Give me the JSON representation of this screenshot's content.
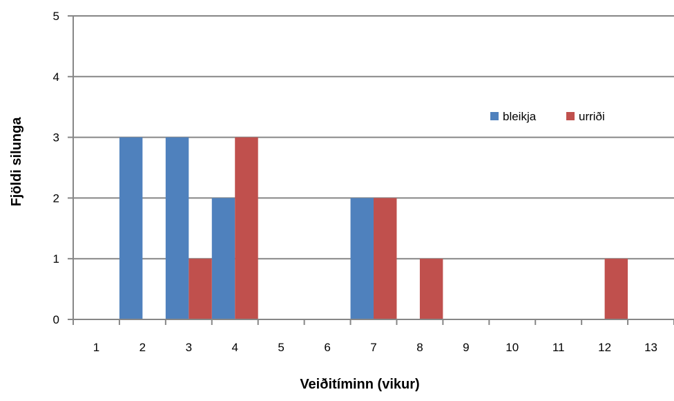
{
  "chart_data": {
    "type": "bar",
    "title": "",
    "xlabel": "Veiðitíminn (vikur)",
    "ylabel": "Fjöldi silunga",
    "categories": [
      "1",
      "2",
      "3",
      "4",
      "5",
      "6",
      "7",
      "8",
      "9",
      "10",
      "11",
      "12",
      "13"
    ],
    "y_ticks": [
      "0",
      "1",
      "2",
      "3",
      "4",
      "5"
    ],
    "ylim": [
      0,
      5
    ],
    "grid": true,
    "legend_position": "right",
    "colors": {
      "bleikja": "#4f81bd",
      "urridi": "#c0504d",
      "grid": "#868686",
      "axis": "#868686"
    },
    "series": [
      {
        "name": "bleikja",
        "values": [
          0,
          3,
          3,
          2,
          0,
          0,
          2,
          0,
          0,
          0,
          0,
          0,
          0
        ]
      },
      {
        "name": "urriði",
        "values": [
          0,
          0,
          1,
          3,
          0,
          0,
          2,
          1,
          0,
          0,
          0,
          1,
          0
        ]
      }
    ]
  }
}
